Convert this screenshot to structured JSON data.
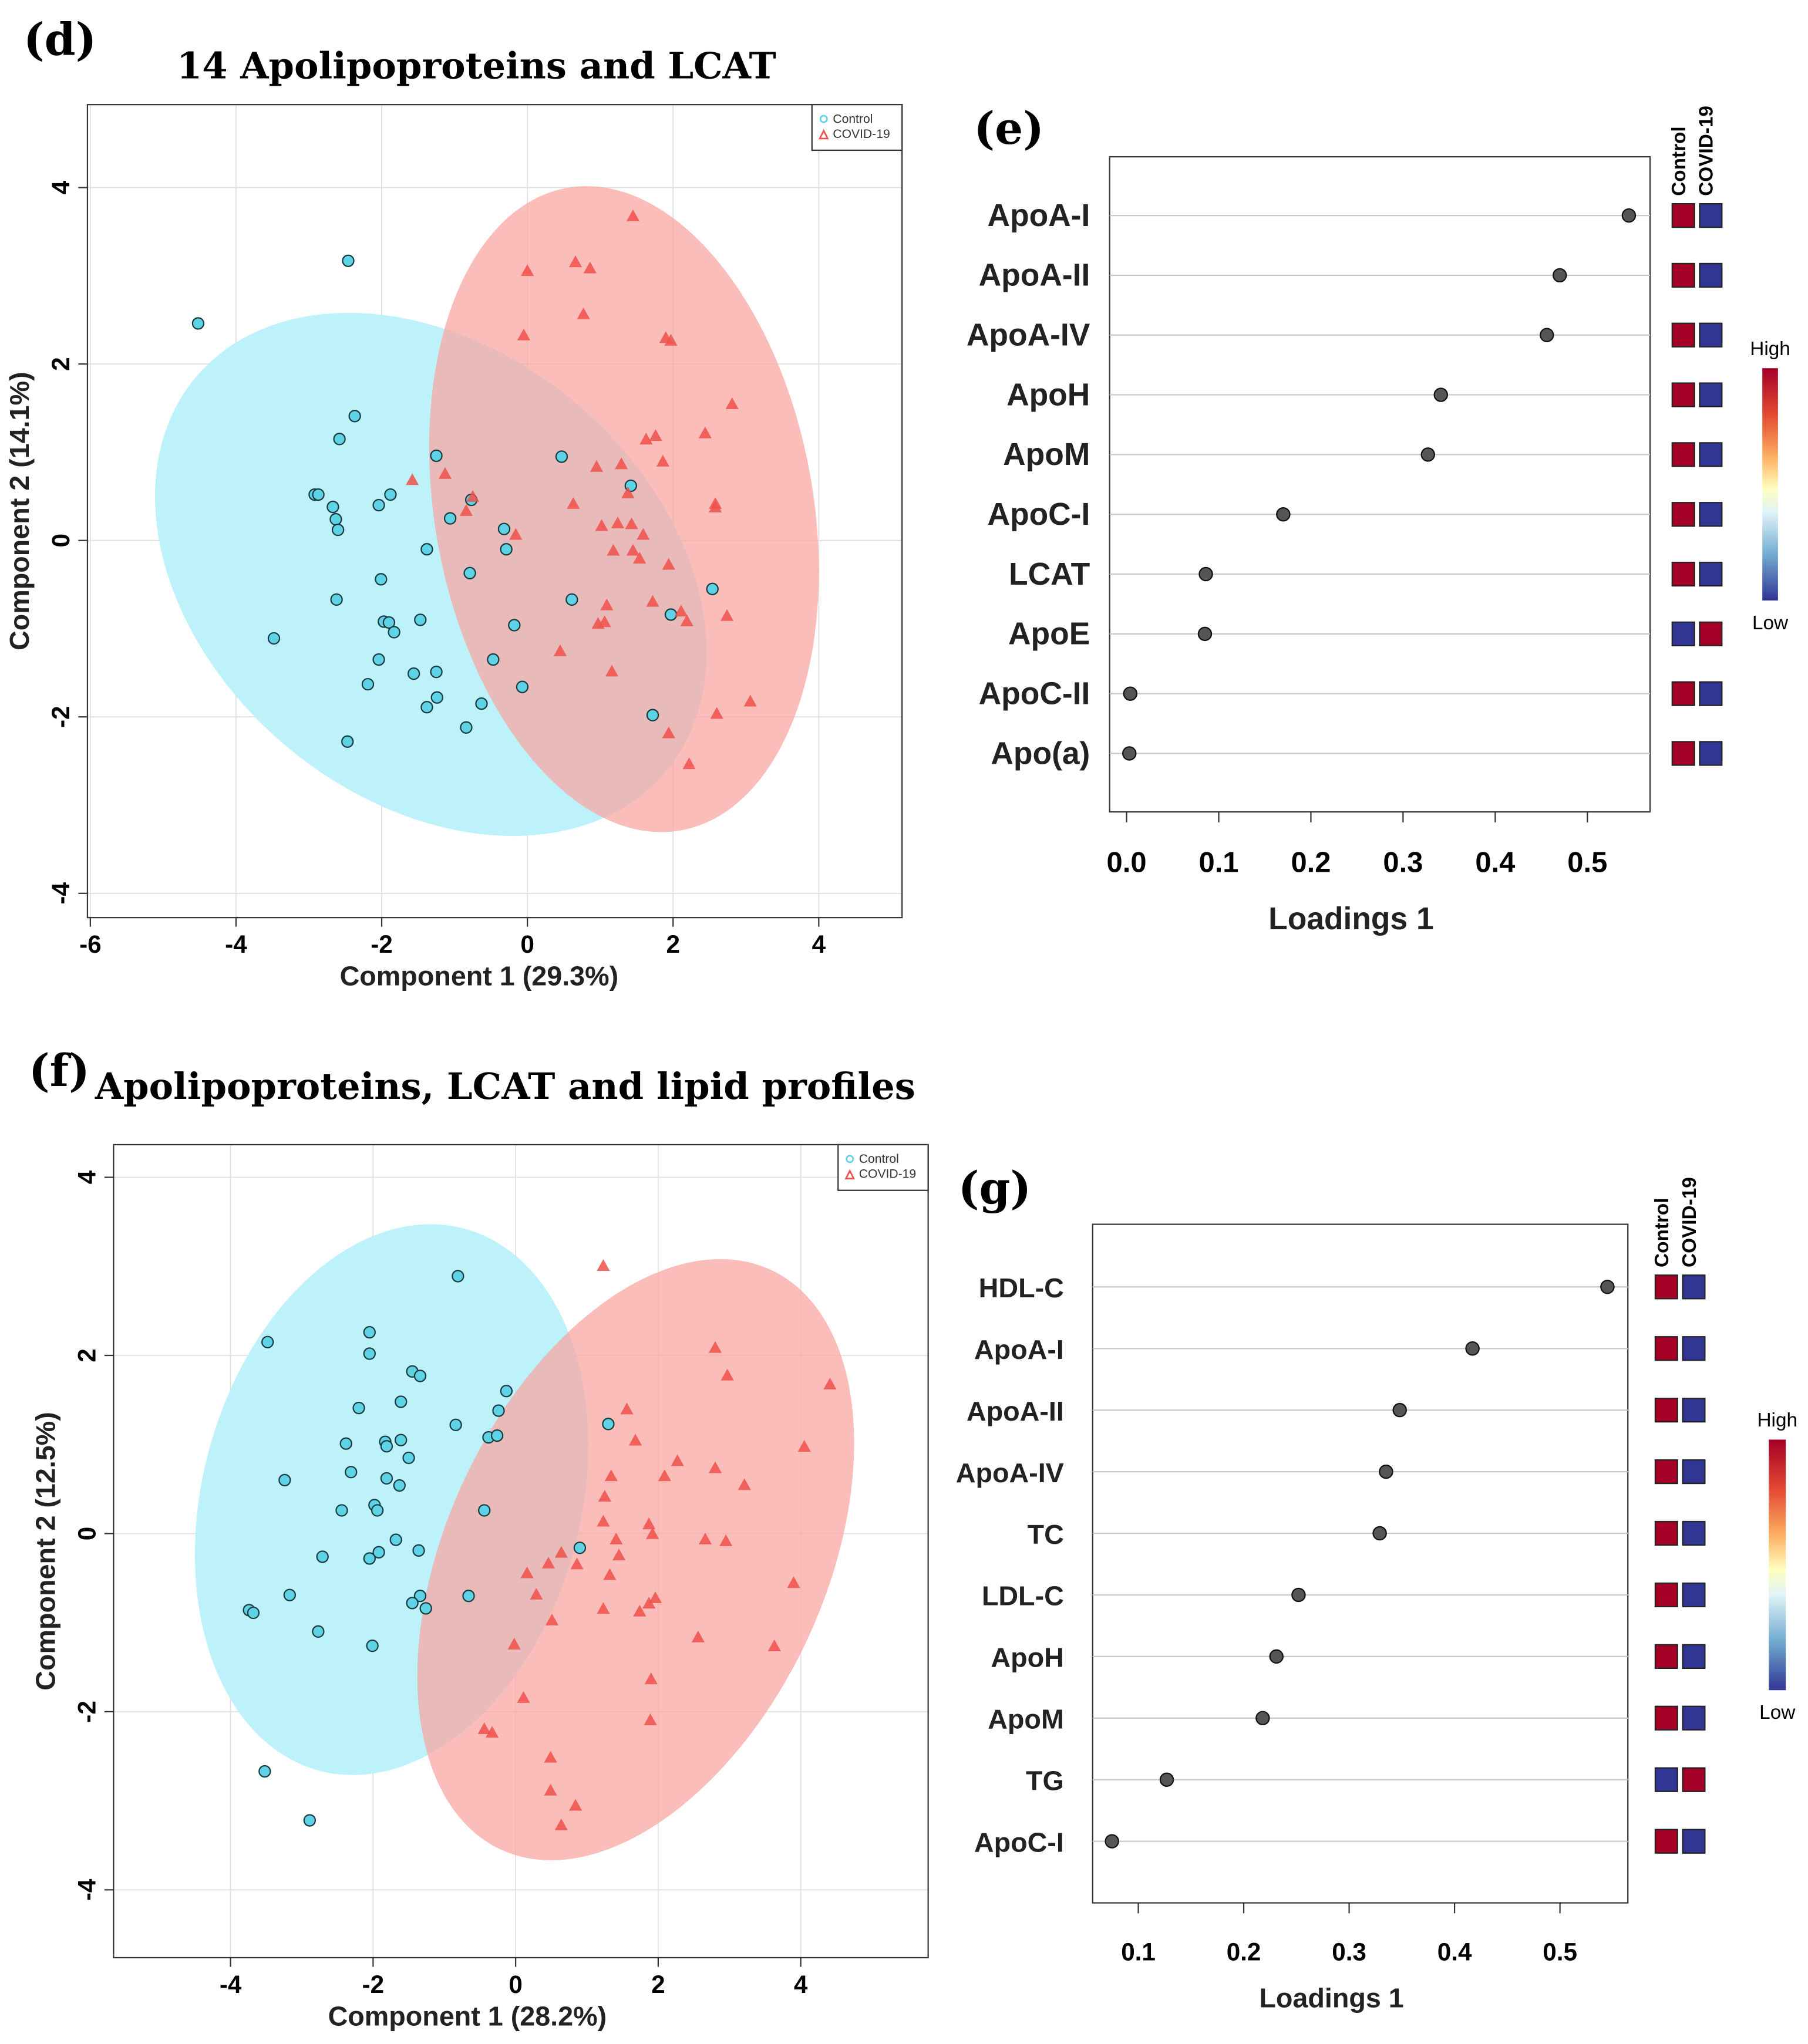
{
  "chart_data": [
    {
      "panel": "(d)",
      "type": "scatter",
      "title": "14 Apolipoproteins and LCAT",
      "xlabel": "Component 1 (29.3%)",
      "ylabel": "Component 2 (14.1%)",
      "xlim": [
        -6.1,
        5.1
      ],
      "ylim": [
        -4.3,
        4.9
      ],
      "xticks": [
        -6,
        -4,
        -2,
        0,
        2,
        4
      ],
      "yticks": [
        -4,
        -2,
        0,
        2,
        4
      ],
      "legend": {
        "position": "top-right",
        "entries": [
          "Control",
          "COVID-19"
        ]
      },
      "series": [
        {
          "name": "Control",
          "marker": "circle",
          "color": "#5fd3e6",
          "points": [
            [
              -4.52,
              2.46
            ],
            [
              -2.46,
              3.17
            ],
            [
              -2.37,
              1.41
            ],
            [
              -2.58,
              1.15
            ],
            [
              -2.92,
              0.52
            ],
            [
              -2.87,
              0.52
            ],
            [
              -2.67,
              0.38
            ],
            [
              -2.63,
              0.24
            ],
            [
              -2.6,
              0.12
            ],
            [
              -2.04,
              0.4
            ],
            [
              -1.88,
              0.52
            ],
            [
              -1.25,
              0.96
            ],
            [
              -1.06,
              0.25
            ],
            [
              -0.77,
              0.46
            ],
            [
              -0.32,
              0.13
            ],
            [
              -0.29,
              -0.1
            ],
            [
              -1.38,
              -0.1
            ],
            [
              -0.79,
              -0.37
            ],
            [
              -2.01,
              -0.44
            ],
            [
              -2.62,
              -0.67
            ],
            [
              -3.48,
              -1.11
            ],
            [
              -1.97,
              -0.92
            ],
            [
              -1.9,
              -0.93
            ],
            [
              -1.83,
              -1.04
            ],
            [
              -1.47,
              -0.9
            ],
            [
              -2.04,
              -1.35
            ],
            [
              -2.19,
              -1.63
            ],
            [
              -1.56,
              -1.51
            ],
            [
              -1.25,
              -1.49
            ],
            [
              -1.24,
              -1.78
            ],
            [
              -1.38,
              -1.89
            ],
            [
              -0.63,
              -1.85
            ],
            [
              -0.84,
              -2.12
            ],
            [
              -0.47,
              -1.35
            ],
            [
              -0.18,
              -0.96
            ],
            [
              -0.07,
              -1.66
            ],
            [
              -2.47,
              -2.28
            ],
            [
              0.47,
              0.95
            ],
            [
              1.42,
              0.62
            ],
            [
              0.61,
              -0.67
            ],
            [
              1.97,
              -0.84
            ],
            [
              2.54,
              -0.55
            ],
            [
              1.72,
              -1.98
            ]
          ]
        },
        {
          "name": "COVID-19",
          "marker": "triangle",
          "color": "#f0504a",
          "points": [
            [
              1.45,
              3.67
            ],
            [
              0,
              3.05
            ],
            [
              0.66,
              3.15
            ],
            [
              0.86,
              3.08
            ],
            [
              0.77,
              2.56
            ],
            [
              -0.05,
              2.32
            ],
            [
              1.9,
              2.29
            ],
            [
              1.97,
              2.26
            ],
            [
              2.81,
              1.54
            ],
            [
              2.44,
              1.21
            ],
            [
              1.63,
              1.14
            ],
            [
              1.76,
              1.18
            ],
            [
              1.86,
              0.89
            ],
            [
              1.29,
              0.86
            ],
            [
              0.95,
              0.83
            ],
            [
              -1.13,
              0.75
            ],
            [
              -1.58,
              0.68
            ],
            [
              -0.75,
              0.49
            ],
            [
              -0.84,
              0.33
            ],
            [
              0.63,
              0.41
            ],
            [
              1.38,
              0.53
            ],
            [
              2.58,
              0.41
            ],
            [
              2.58,
              0.37
            ],
            [
              -0.16,
              0.06
            ],
            [
              1.02,
              0.16
            ],
            [
              1.24,
              0.19
            ],
            [
              1.43,
              0.18
            ],
            [
              1.59,
              0.06
            ],
            [
              1.18,
              -0.12
            ],
            [
              1.45,
              -0.12
            ],
            [
              1.54,
              -0.21
            ],
            [
              1.94,
              -0.28
            ],
            [
              1.09,
              -0.74
            ],
            [
              0.97,
              -0.95
            ],
            [
              1.06,
              -0.93
            ],
            [
              1.72,
              -0.7
            ],
            [
              2.11,
              -0.81
            ],
            [
              2.19,
              -0.92
            ],
            [
              2.74,
              -0.86
            ],
            [
              0.45,
              -1.26
            ],
            [
              1.16,
              -1.49
            ],
            [
              1.94,
              -2.19
            ],
            [
              2.22,
              -2.54
            ],
            [
              2.6,
              -1.97
            ],
            [
              3.06,
              -1.83
            ]
          ]
        }
      ]
    },
    {
      "panel": "(e)",
      "type": "dot",
      "xlabel": "Loadings 1",
      "xlim": [
        -0.02,
        0.58
      ],
      "xticks": [
        0.0,
        0.1,
        0.2,
        0.3,
        0.4,
        0.5
      ],
      "xtick_labels": [
        "0.0",
        "0.1",
        "0.2",
        "0.3",
        "0.4",
        "0.5"
      ],
      "categories": [
        "ApoA-I",
        "ApoA-II",
        "ApoA-IV",
        "ApoH",
        "ApoM",
        "ApoC-I",
        "LCAT",
        "ApoE",
        "ApoC-II",
        "Apo(a)"
      ],
      "values": [
        0.545,
        0.47,
        0.456,
        0.341,
        0.327,
        0.17,
        0.086,
        0.085,
        0.004,
        0.003
      ],
      "heatmap_columns": [
        "Control",
        "COVID-19"
      ],
      "heatmap": [
        [
          "high",
          "low"
        ],
        [
          "high",
          "low"
        ],
        [
          "high",
          "low"
        ],
        [
          "high",
          "low"
        ],
        [
          "high",
          "low"
        ],
        [
          "high",
          "low"
        ],
        [
          "high",
          "low"
        ],
        [
          "low",
          "high"
        ],
        [
          "high",
          "low"
        ],
        [
          "high",
          "low"
        ]
      ],
      "colorbar": {
        "high_label": "High",
        "low_label": "Low"
      }
    },
    {
      "panel": "(f)",
      "type": "scatter",
      "title": "Apolipoproteins, LCAT and lipid profiles",
      "xlabel": "Component 1 (28.2%)",
      "ylabel": "Component 2 (12.5%)",
      "xlim": [
        -5.6,
        5.8
      ],
      "ylim": [
        -4.7,
        4.4
      ],
      "xticks": [
        -4,
        -2,
        0,
        2,
        4
      ],
      "yticks": [
        -4,
        -2,
        0,
        2,
        4
      ],
      "legend": {
        "position": "top-right",
        "entries": [
          "Control",
          "COVID-19"
        ]
      },
      "series": [
        {
          "name": "Control",
          "marker": "circle",
          "color": "#5fd3e6",
          "points": [
            [
              -3.48,
              2.15
            ],
            [
              -2.05,
              2.26
            ],
            [
              -2.05,
              2.02
            ],
            [
              -0.81,
              2.89
            ],
            [
              -1.45,
              1.82
            ],
            [
              -1.34,
              1.77
            ],
            [
              -2.2,
              1.41
            ],
            [
              -1.61,
              1.48
            ],
            [
              -3.24,
              0.6
            ],
            [
              -2.38,
              1.01
            ],
            [
              -1.83,
              1.03
            ],
            [
              -1.81,
              0.98
            ],
            [
              -1.61,
              1.05
            ],
            [
              -1.5,
              0.85
            ],
            [
              -2.31,
              0.69
            ],
            [
              -1.81,
              0.62
            ],
            [
              -1.63,
              0.54
            ],
            [
              -2.44,
              0.26
            ],
            [
              -1.98,
              0.32
            ],
            [
              -1.94,
              0.26
            ],
            [
              -1.68,
              -0.07
            ],
            [
              -1.92,
              -0.21
            ],
            [
              -2.05,
              -0.28
            ],
            [
              -1.36,
              -0.19
            ],
            [
              -2.71,
              -0.26
            ],
            [
              -3.17,
              -0.69
            ],
            [
              -3.74,
              -0.86
            ],
            [
              -3.68,
              -0.89
            ],
            [
              -2.77,
              -1.1
            ],
            [
              -1.34,
              -0.7
            ],
            [
              -1.45,
              -0.78
            ],
            [
              -1.26,
              -0.84
            ],
            [
              -0.66,
              -0.7
            ],
            [
              -2.01,
              -1.26
            ],
            [
              -0.84,
              1.22
            ],
            [
              -0.13,
              1.6
            ],
            [
              -0.24,
              1.38
            ],
            [
              -0.38,
              1.08
            ],
            [
              -0.26,
              1.1
            ],
            [
              -0.44,
              0.26
            ],
            [
              1.3,
              1.23
            ],
            [
              0.9,
              -0.16
            ],
            [
              -3.52,
              -2.67
            ],
            [
              -2.89,
              -3.22
            ]
          ]
        },
        {
          "name": "COVID-19",
          "marker": "triangle",
          "color": "#f0504a",
          "points": [
            [
              1.23,
              3.0
            ],
            [
              2.8,
              2.08
            ],
            [
              2.97,
              1.77
            ],
            [
              4.41,
              1.67
            ],
            [
              1.56,
              1.39
            ],
            [
              1.68,
              1.04
            ],
            [
              1.34,
              0.64
            ],
            [
              4.05,
              0.97
            ],
            [
              2.27,
              0.81
            ],
            [
              2.8,
              0.73
            ],
            [
              3.21,
              0.54
            ],
            [
              2.09,
              0.64
            ],
            [
              1.25,
              0.41
            ],
            [
              1.87,
              0.1
            ],
            [
              1.23,
              0.13
            ],
            [
              2.66,
              -0.07
            ],
            [
              2.95,
              -0.09
            ],
            [
              1.92,
              -0.01
            ],
            [
              1.41,
              -0.07
            ],
            [
              1.45,
              -0.25
            ],
            [
              0.64,
              -0.22
            ],
            [
              0.46,
              -0.34
            ],
            [
              1.32,
              -0.47
            ],
            [
              0.86,
              -0.35
            ],
            [
              0.29,
              -0.69
            ],
            [
              0.16,
              -0.45
            ],
            [
              1.96,
              -0.73
            ],
            [
              1.87,
              -0.79
            ],
            [
              1.74,
              -0.88
            ],
            [
              1.23,
              -0.85
            ],
            [
              2.56,
              -1.17
            ],
            [
              3.9,
              -0.56
            ],
            [
              3.63,
              -1.27
            ],
            [
              0.51,
              -0.98
            ],
            [
              -0.02,
              -1.25
            ],
            [
              1.9,
              -1.64
            ],
            [
              0.11,
              -1.85
            ],
            [
              -0.44,
              -2.2
            ],
            [
              -0.33,
              -2.24
            ],
            [
              1.89,
              -2.1
            ],
            [
              0.49,
              -2.52
            ],
            [
              0.49,
              -2.89
            ],
            [
              0.84,
              -3.06
            ],
            [
              0.64,
              -3.28
            ]
          ]
        }
      ]
    },
    {
      "panel": "(g)",
      "type": "dot",
      "xlabel": "Loadings 1",
      "xlim": [
        0.057,
        0.565
      ],
      "xticks": [
        0.1,
        0.2,
        0.3,
        0.4,
        0.5
      ],
      "xtick_labels": [
        "0.1",
        "0.2",
        "0.3",
        "0.4",
        "0.5"
      ],
      "categories": [
        "HDL-C",
        "ApoA-I",
        "ApoA-II",
        "ApoA-IV",
        "TC",
        "LDL-C",
        "ApoH",
        "ApoM",
        "TG",
        "ApoC-I"
      ],
      "values": [
        0.545,
        0.417,
        0.348,
        0.335,
        0.329,
        0.252,
        0.231,
        0.218,
        0.127,
        0.075
      ],
      "heatmap_columns": [
        "Control",
        "COVID-19"
      ],
      "heatmap": [
        [
          "high",
          "low"
        ],
        [
          "high",
          "low"
        ],
        [
          "high",
          "low"
        ],
        [
          "high",
          "low"
        ],
        [
          "high",
          "low"
        ],
        [
          "high",
          "low"
        ],
        [
          "high",
          "low"
        ],
        [
          "high",
          "low"
        ],
        [
          "low",
          "high"
        ],
        [
          "high",
          "low"
        ]
      ],
      "colorbar": {
        "high_label": "High",
        "low_label": "Low"
      }
    }
  ],
  "colors": {
    "high": "#a50026",
    "low": "#313695",
    "control_fill": "#b9f1fb",
    "covid_fill": "#f8a3a0"
  }
}
